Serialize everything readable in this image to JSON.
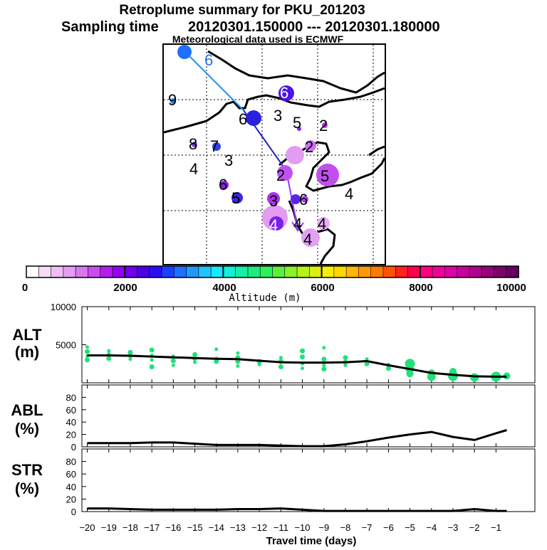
{
  "header": {
    "title": "Retroplume summary for PKU_201203",
    "sampling_label": "Sampling time",
    "sampling_range": "20120301.150000 --- 20120301.180000",
    "met_note": "Meteorological data used is ECMWF"
  },
  "colors": {
    "alt_points": "#22e07a",
    "line": "#000000",
    "track_early": "#1e90ff",
    "track_mid": "#2222cc",
    "track_late": "#9933ff"
  },
  "map": {
    "labels": [
      "6",
      "9",
      "6",
      "6",
      "3",
      "5",
      "2",
      "8",
      "7",
      "3",
      "4",
      "6",
      "5",
      "2",
      "2",
      "5",
      "4",
      "3",
      "6",
      "4",
      "4",
      "4",
      "4"
    ]
  },
  "colorbar": {
    "title": "Altitude (m)",
    "ticks": [
      "0",
      "2000",
      "4000",
      "6000",
      "8000",
      "10000"
    ],
    "colors": [
      "#ffffff",
      "#f7dcf7",
      "#efbdf4",
      "#e59cf2",
      "#da78f0",
      "#c94dee",
      "#b31ef0",
      "#9400f5",
      "#7000ee",
      "#4a00e6",
      "#2a10f0",
      "#1a40ff",
      "#1c6fff",
      "#1e99ff",
      "#1ec3ff",
      "#18e8ff",
      "#12f0d8",
      "#14f0a8",
      "#18ee7a",
      "#2ef05a",
      "#5af03c",
      "#8af028",
      "#b8f018",
      "#dcf010",
      "#f6ee0a",
      "#ffd800",
      "#ffb800",
      "#ff9a00",
      "#ff7a00",
      "#ff5200",
      "#ff2020",
      "#ff0050",
      "#ff0080",
      "#f0009c",
      "#e000a8",
      "#c8009c",
      "#b0008c",
      "#96007c",
      "#7c006c",
      "#660060"
    ]
  },
  "chart_data": [
    {
      "type": "scatter",
      "panel": "ALT",
      "ylabel": "ALT",
      "yunits": "(m)",
      "ylim": [
        0,
        10000
      ],
      "yticks": [
        "10000",
        "5000"
      ],
      "x": [
        -20,
        -19,
        -18,
        -17,
        -16,
        -15,
        -14,
        -13,
        -12,
        -11,
        -10,
        -9,
        -8,
        -7,
        -6,
        -5,
        -4,
        -3,
        -2,
        -1,
        -0.5
      ],
      "mean": [
        3600,
        3600,
        3550,
        3450,
        3350,
        3250,
        3150,
        3100,
        2900,
        2700,
        2650,
        2650,
        2700,
        2850,
        2300,
        1800,
        1300,
        1050,
        850,
        800,
        800
      ],
      "cluster_points": [
        [
          -20,
          3500
        ],
        [
          -20,
          4100
        ],
        [
          -20,
          4700
        ],
        [
          -20,
          3000
        ],
        [
          -19,
          3800
        ],
        [
          -19,
          3200
        ],
        [
          -19,
          4200
        ],
        [
          -18,
          3600
        ],
        [
          -18,
          3100
        ],
        [
          -18,
          4000
        ],
        [
          -17,
          3600
        ],
        [
          -17,
          4300
        ],
        [
          -17,
          3000
        ],
        [
          -17,
          2100
        ],
        [
          -16,
          3500
        ],
        [
          -16,
          2900
        ],
        [
          -16,
          2300
        ],
        [
          -15,
          3200
        ],
        [
          -15,
          2700
        ],
        [
          -15,
          3700
        ],
        [
          -14,
          3200
        ],
        [
          -14,
          2800
        ],
        [
          -14,
          4400
        ],
        [
          -13,
          3300
        ],
        [
          -13,
          3900
        ],
        [
          -13,
          2800
        ],
        [
          -13,
          2200
        ],
        [
          -12,
          2800
        ],
        [
          -12,
          2400
        ],
        [
          -11,
          2800
        ],
        [
          -11,
          3300
        ],
        [
          -11,
          2100
        ],
        [
          -10,
          2500
        ],
        [
          -10,
          3400
        ],
        [
          -10,
          1900
        ],
        [
          -10,
          4200
        ],
        [
          -9,
          2700
        ],
        [
          -9,
          3100
        ],
        [
          -9,
          2300
        ],
        [
          -9,
          1800
        ],
        [
          -9,
          4600
        ],
        [
          -8,
          2700
        ],
        [
          -8,
          2300
        ],
        [
          -8,
          3300
        ],
        [
          -7,
          3100
        ],
        [
          -7,
          2500
        ],
        [
          -6,
          2400
        ],
        [
          -6,
          1900
        ],
        [
          -5,
          1200
        ],
        [
          -5,
          1800
        ],
        [
          -5,
          2500
        ],
        [
          -4,
          1300
        ],
        [
          -4,
          800
        ],
        [
          -3,
          900
        ],
        [
          -3,
          1500
        ],
        [
          -2,
          700
        ],
        [
          -1,
          800
        ],
        [
          -0.5,
          900
        ]
      ]
    },
    {
      "type": "line",
      "panel": "ABL",
      "ylabel": "ABL",
      "yunits": "(%)",
      "ylim": [
        0,
        100
      ],
      "yticks": [
        "80",
        "60",
        "40",
        "20",
        "0"
      ],
      "x": [
        -20,
        -19,
        -18,
        -17,
        -16,
        -15,
        -14,
        -13,
        -12,
        -11,
        -10,
        -9,
        -8,
        -7,
        -6,
        -5,
        -4,
        -3,
        -2,
        -1,
        -0.5
      ],
      "values": [
        6,
        6,
        6,
        7,
        7,
        5,
        3,
        3,
        3,
        2,
        1,
        1,
        4,
        9,
        15,
        20,
        24,
        16,
        11,
        22,
        27
      ]
    },
    {
      "type": "line",
      "panel": "STR",
      "ylabel": "STR",
      "yunits": "(%)",
      "ylim": [
        0,
        100
      ],
      "yticks": [
        "80",
        "60",
        "40",
        "20",
        "0"
      ],
      "x": [
        -20,
        -19,
        -18,
        -17,
        -16,
        -15,
        -14,
        -13,
        -12,
        -11,
        -10,
        -9,
        -8,
        -7,
        -6,
        -5,
        -4,
        -3,
        -2,
        -1,
        -0.5
      ],
      "values": [
        5,
        5,
        4,
        3,
        3,
        3,
        3,
        4,
        4,
        5,
        3,
        1,
        1,
        1,
        1,
        1,
        1,
        1,
        4,
        1,
        1
      ]
    }
  ],
  "xaxis": {
    "label": "Travel time (days)",
    "ticks": [
      "−20",
      "−19",
      "−18",
      "−17",
      "−16",
      "−15",
      "−14",
      "−13",
      "−12",
      "−11",
      "−10",
      "−9",
      "−8",
      "−7",
      "−6",
      "−5",
      "−4",
      "−3",
      "−2",
      "−1"
    ],
    "tick_values": [
      -20,
      -19,
      -18,
      -17,
      -16,
      -15,
      -14,
      -13,
      -12,
      -11,
      -10,
      -9,
      -8,
      -7,
      -6,
      -5,
      -4,
      -3,
      -2,
      -1
    ]
  }
}
